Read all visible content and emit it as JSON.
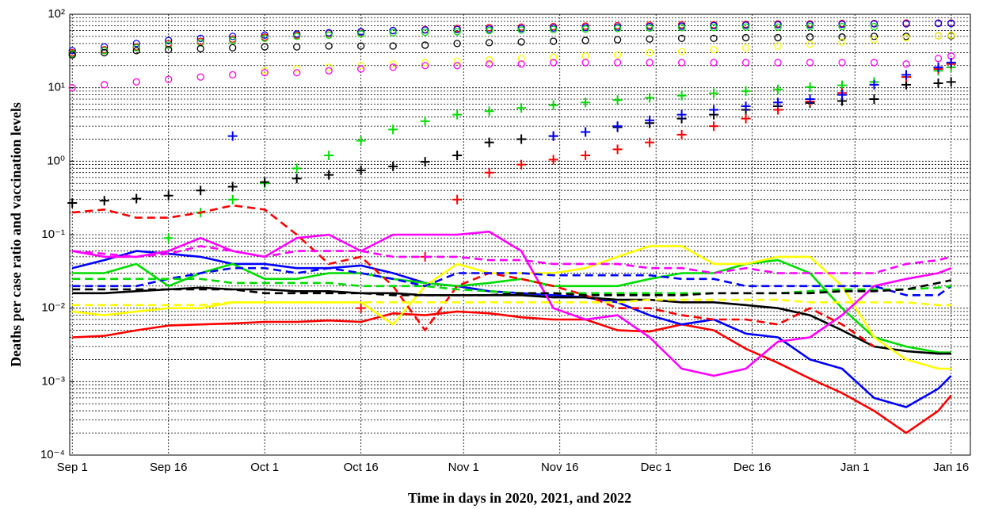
{
  "chart_data": {
    "type": "line",
    "xlabel": "Time in days in 2020, 2021, and 2022",
    "ylabel": "Deaths per case ratio and vaccination levels",
    "yscale": "log",
    "grid": true,
    "minor_grid": true,
    "xlim": [
      -0.4,
      140
    ],
    "ylim": [
      0.0001,
      100
    ],
    "xticks": [
      {
        "value": 0,
        "label": "Sep 1"
      },
      {
        "value": 15,
        "label": "Sep 16"
      },
      {
        "value": 30,
        "label": "Oct 1"
      },
      {
        "value": 45,
        "label": "Oct 16"
      },
      {
        "value": 61,
        "label": "Nov 1"
      },
      {
        "value": 76,
        "label": "Nov 16"
      },
      {
        "value": 91,
        "label": "Dec 1"
      },
      {
        "value": 106,
        "label": "Dec 16"
      },
      {
        "value": 122,
        "label": "Jan 1"
      },
      {
        "value": 137,
        "label": "Jan 16"
      }
    ],
    "yticks": [
      {
        "value": 0.0001,
        "label": "10⁻⁴"
      },
      {
        "value": 0.001,
        "label": "10⁻³"
      },
      {
        "value": 0.01,
        "label": "10⁻²"
      },
      {
        "value": 0.1,
        "label": "10⁻¹"
      },
      {
        "value": 1,
        "label": "10⁰"
      },
      {
        "value": 10,
        "label": "10¹"
      },
      {
        "value": 100,
        "label": "10²"
      }
    ],
    "x": [
      0,
      5,
      10,
      15,
      20,
      25,
      30,
      35,
      40,
      45,
      50,
      55,
      60,
      65,
      70,
      75,
      80,
      85,
      90,
      95,
      100,
      105,
      110,
      115,
      120,
      125,
      130,
      135,
      137
    ],
    "series": [
      {
        "color": "#ff0000",
        "style": "circle",
        "values": [
          30,
          33,
          36,
          40,
          43,
          46,
          49,
          52,
          55,
          57,
          60,
          62,
          64,
          66,
          67,
          68,
          69,
          70,
          71,
          72,
          72,
          73,
          74,
          74,
          75,
          75,
          76,
          76,
          76
        ]
      },
      {
        "color": "#0000ff",
        "style": "circle",
        "values": [
          32,
          36,
          40,
          44,
          47,
          50,
          52,
          54,
          56,
          58,
          60,
          61,
          62,
          63,
          64,
          65,
          66,
          67,
          68,
          69,
          70,
          71,
          72,
          72,
          73,
          74,
          74,
          75,
          75
        ]
      },
      {
        "color": "#00dd00",
        "style": "circle",
        "values": [
          29,
          32,
          35,
          38,
          41,
          44,
          47,
          50,
          52,
          54,
          56,
          57,
          58,
          60,
          61,
          62,
          63,
          64,
          65,
          66,
          66,
          67,
          67,
          68,
          68,
          68,
          null,
          null,
          null
        ]
      },
      {
        "color": "#000000",
        "style": "circle",
        "values": [
          28,
          30,
          32,
          33,
          34,
          35,
          36,
          36,
          37,
          37,
          37,
          38,
          40,
          41,
          42,
          43,
          44,
          45,
          46,
          47,
          47,
          48,
          48,
          49,
          49,
          50,
          50,
          51,
          51
        ]
      },
      {
        "color": "#ffff00",
        "style": "circle",
        "values": [
          10,
          11,
          12,
          13,
          14,
          15,
          17,
          18,
          19,
          20,
          21,
          22,
          23,
          24,
          25,
          26,
          27,
          28,
          30,
          31,
          33,
          35,
          37,
          39,
          42,
          45,
          48,
          51,
          52
        ]
      },
      {
        "color": "#ff00ff",
        "style": "circle",
        "values": [
          10,
          11,
          12,
          13,
          14,
          15,
          16,
          16,
          17,
          18,
          19,
          20,
          20,
          21,
          21,
          22,
          22,
          22,
          22,
          22,
          22,
          22,
          22,
          22,
          22,
          22,
          21,
          25,
          27
        ]
      },
      {
        "color": "#00dd00",
        "style": "plus",
        "values": [
          null,
          null,
          null,
          0.09,
          0.2,
          0.3,
          0.5,
          0.8,
          1.2,
          1.9,
          2.7,
          3.5,
          4.3,
          4.8,
          5.3,
          5.8,
          6.3,
          6.8,
          7.3,
          7.8,
          8.4,
          9,
          9.5,
          10.2,
          10.8,
          12,
          14,
          17,
          19
        ]
      },
      {
        "color": "#000000",
        "style": "plus",
        "values": [
          0.27,
          0.29,
          0.31,
          0.34,
          0.4,
          0.45,
          0.52,
          0.58,
          0.65,
          0.75,
          0.85,
          0.98,
          1.2,
          1.8,
          2,
          2.2,
          2.5,
          2.9,
          3.3,
          3.8,
          4.3,
          5,
          5.6,
          6.2,
          6.6,
          7,
          11,
          11.5,
          12
        ]
      },
      {
        "color": "#ff0000",
        "style": "plus",
        "values": [
          null,
          null,
          null,
          null,
          null,
          null,
          null,
          null,
          null,
          0.01,
          null,
          0.05,
          0.3,
          0.7,
          0.9,
          1.05,
          1.2,
          1.45,
          1.8,
          2.3,
          3,
          3.8,
          5,
          6.5,
          8.5,
          11,
          14,
          18,
          21
        ]
      },
      {
        "color": "#0000ff",
        "style": "plus",
        "values": [
          null,
          null,
          null,
          null,
          null,
          2.2,
          null,
          null,
          null,
          null,
          null,
          null,
          null,
          null,
          null,
          2.2,
          2.5,
          3,
          3.6,
          4.3,
          5,
          5.6,
          6.3,
          7,
          8,
          11,
          15,
          19,
          22
        ]
      },
      {
        "color": "#ff0000",
        "style": "solid",
        "values": [
          0.004,
          0.0042,
          0.005,
          0.0058,
          0.006,
          0.0062,
          0.0065,
          0.0065,
          0.0068,
          0.0065,
          0.0085,
          0.008,
          0.009,
          0.0085,
          0.0075,
          0.007,
          0.007,
          0.005,
          0.0048,
          0.006,
          0.005,
          0.0028,
          0.0018,
          0.0011,
          0.0007,
          0.0004,
          0.0002,
          0.0004,
          0.00065
        ]
      },
      {
        "color": "#0000ff",
        "style": "solid",
        "values": [
          0.035,
          0.045,
          0.06,
          0.055,
          0.05,
          0.04,
          0.04,
          0.035,
          0.035,
          0.038,
          0.03,
          0.022,
          0.02,
          0.017,
          0.016,
          0.015,
          0.014,
          0.012,
          0.008,
          0.006,
          0.007,
          0.0045,
          0.004,
          0.002,
          0.0015,
          0.0006,
          0.00045,
          0.0008,
          0.0012
        ]
      },
      {
        "color": "#00dd00",
        "style": "solid",
        "values": [
          0.03,
          0.03,
          0.04,
          0.02,
          0.03,
          0.04,
          0.025,
          0.025,
          0.03,
          0.03,
          0.025,
          0.022,
          0.02,
          0.022,
          0.025,
          0.02,
          0.02,
          0.02,
          0.025,
          0.03,
          0.03,
          0.04,
          0.045,
          0.03,
          0.01,
          0.004,
          0.003,
          0.0025,
          0.0025
        ]
      },
      {
        "color": "#000000",
        "style": "solid",
        "values": [
          0.016,
          0.016,
          0.017,
          0.018,
          0.019,
          0.018,
          0.018,
          0.017,
          0.017,
          0.016,
          0.016,
          0.015,
          0.015,
          0.015,
          0.015,
          0.014,
          0.014,
          0.013,
          0.013,
          0.012,
          0.012,
          0.011,
          0.01,
          0.008,
          0.005,
          0.003,
          0.0026,
          0.0024,
          0.0024
        ]
      },
      {
        "color": "#ffff00",
        "style": "solid",
        "values": [
          0.009,
          0.008,
          0.009,
          0.01,
          0.01,
          0.012,
          0.012,
          0.012,
          0.012,
          0.012,
          0.006,
          0.02,
          0.04,
          0.03,
          0.03,
          0.03,
          0.035,
          0.05,
          0.07,
          0.07,
          0.04,
          0.04,
          0.05,
          0.05,
          0.02,
          0.004,
          0.002,
          0.0015,
          0.0015
        ]
      },
      {
        "color": "#ff00ff",
        "style": "solid",
        "values": [
          0.06,
          0.05,
          0.05,
          0.06,
          0.09,
          0.06,
          0.05,
          0.09,
          0.1,
          0.06,
          0.1,
          0.1,
          0.1,
          0.11,
          0.06,
          0.01,
          0.007,
          0.008,
          0.004,
          0.0015,
          0.0012,
          0.0015,
          0.0035,
          0.004,
          0.008,
          0.02,
          0.025,
          0.03,
          0.035
        ]
      },
      {
        "color": "#ff0000",
        "style": "dashed",
        "values": [
          0.2,
          0.22,
          0.17,
          0.17,
          0.2,
          0.25,
          0.22,
          0.1,
          0.04,
          0.05,
          0.02,
          0.005,
          0.02,
          0.03,
          0.025,
          0.02,
          0.015,
          0.01,
          0.01,
          0.008,
          0.007,
          0.007,
          0.006,
          0.01,
          0.006,
          0.003,
          null,
          null,
          null
        ]
      },
      {
        "color": "#0000ff",
        "style": "dashed",
        "values": [
          0.02,
          0.02,
          0.02,
          0.025,
          0.03,
          0.035,
          0.035,
          0.03,
          0.035,
          0.03,
          0.025,
          0.02,
          0.03,
          0.03,
          0.03,
          0.028,
          0.028,
          0.028,
          0.028,
          0.025,
          0.025,
          0.02,
          0.02,
          0.02,
          0.02,
          0.02,
          0.015,
          0.015,
          0.02
        ]
      },
      {
        "color": "#00dd00",
        "style": "dashed",
        "values": [
          0.025,
          0.025,
          0.025,
          0.025,
          0.025,
          0.022,
          0.022,
          0.022,
          0.022,
          0.02,
          0.02,
          0.02,
          0.018,
          0.017,
          0.016,
          0.016,
          0.016,
          0.016,
          0.016,
          0.016,
          0.016,
          0.016,
          0.016,
          0.017,
          0.018,
          0.018,
          0.018,
          0.019,
          0.02
        ]
      },
      {
        "color": "#000000",
        "style": "dashed",
        "values": [
          0.018,
          0.018,
          0.018,
          0.018,
          0.018,
          0.018,
          0.016,
          0.016,
          0.016,
          0.016,
          0.015,
          0.015,
          0.015,
          0.015,
          0.016,
          0.016,
          0.015,
          0.015,
          0.015,
          0.015,
          0.016,
          0.016,
          0.016,
          0.016,
          0.017,
          0.017,
          0.018,
          0.022,
          0.024
        ]
      },
      {
        "color": "#ff00ff",
        "style": "dashed",
        "values": [
          0.06,
          0.055,
          0.05,
          0.055,
          0.07,
          0.06,
          0.05,
          0.06,
          0.06,
          0.06,
          0.05,
          0.05,
          0.05,
          0.045,
          0.045,
          0.04,
          0.04,
          0.04,
          0.035,
          0.035,
          0.03,
          0.035,
          0.03,
          0.03,
          0.03,
          0.03,
          0.04,
          0.045,
          0.05
        ]
      },
      {
        "color": "#ffff00",
        "style": "dashed",
        "values": [
          0.011,
          0.011,
          0.011,
          0.011,
          0.011,
          0.012,
          0.012,
          0.012,
          0.012,
          0.012,
          0.012,
          0.012,
          0.012,
          0.012,
          0.012,
          0.012,
          0.012,
          0.012,
          0.013,
          0.013,
          0.013,
          0.013,
          0.013,
          0.012,
          0.012,
          0.012,
          0.012,
          0.011,
          0.011
        ]
      }
    ]
  }
}
